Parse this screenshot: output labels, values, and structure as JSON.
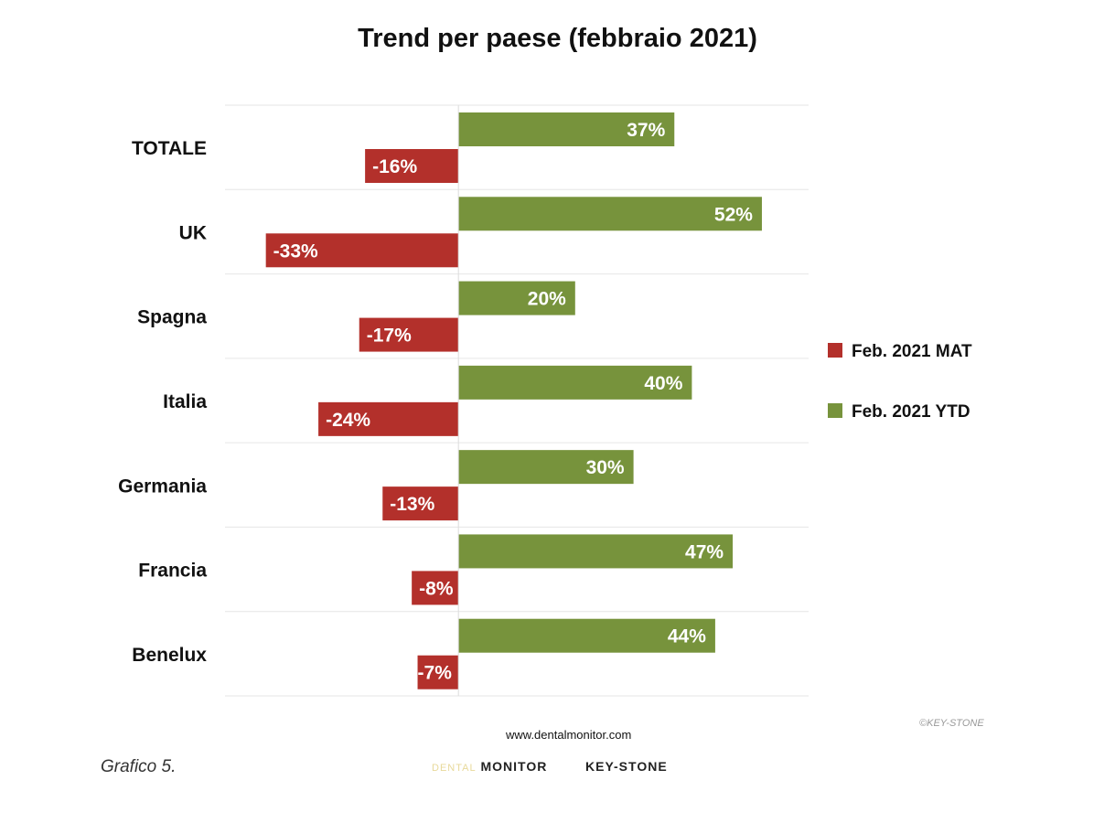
{
  "chart_data": {
    "type": "bar",
    "orientation": "horizontal",
    "title": "Trend per paese (febbraio 2021)",
    "categories": [
      "TOTALE",
      "UK",
      "Spagna",
      "Italia",
      "Germania",
      "Francia",
      "Benelux"
    ],
    "series": [
      {
        "name": "Feb. 2021 YTD",
        "color": "#77933c",
        "values": [
          37,
          52,
          20,
          40,
          30,
          47,
          44
        ]
      },
      {
        "name": "Feb. 2021 MAT",
        "color": "#b3302b",
        "values": [
          -16,
          -33,
          -17,
          -24,
          -13,
          -8,
          -7
        ]
      }
    ],
    "xlim": [
      -40,
      60
    ],
    "unit": "%",
    "legend": [
      "Feb. 2021 MAT",
      "Feb. 2021 YTD"
    ],
    "legend_position": "right",
    "grid": true
  },
  "footer": {
    "caption": "Grafico 5.",
    "url": "www.dentalmonitor.com",
    "copyright": "©KEY-STONE",
    "logo_dental_a": "DENTAL",
    "logo_dental_b": "MONITOR",
    "logo_keystone": "KEY-STONE"
  }
}
